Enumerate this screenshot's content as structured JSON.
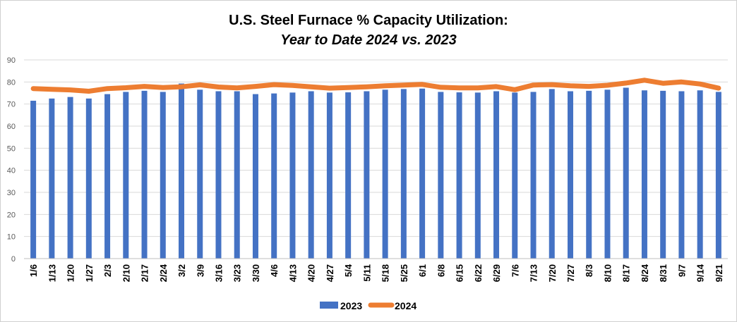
{
  "chart_data": {
    "type": "bar",
    "title": "U.S. Steel Furnace % Capacity Utilization:",
    "subtitle": "Year to Date 2024 vs. 2023",
    "xlabel": "",
    "ylabel": "",
    "ylim": [
      0,
      90
    ],
    "yticks": [
      0,
      10,
      20,
      30,
      40,
      50,
      60,
      70,
      80,
      90
    ],
    "grid": true,
    "legend": "bottom",
    "categories": [
      "1/6",
      "1/13",
      "1/20",
      "1/27",
      "2/3",
      "2/10",
      "2/17",
      "2/24",
      "3/2",
      "3/9",
      "3/16",
      "3/23",
      "3/30",
      "4/6",
      "4/13",
      "4/20",
      "4/27",
      "5/4",
      "5/11",
      "5/18",
      "5/25",
      "6/1",
      "6/8",
      "6/15",
      "6/22",
      "6/29",
      "7/6",
      "7/13",
      "7/20",
      "7/27",
      "8/3",
      "8/10",
      "8/17",
      "8/24",
      "8/31",
      "9/7",
      "9/14",
      "9/21"
    ],
    "series": [
      {
        "name": "2023",
        "type": "bar",
        "color": "#4472c4",
        "values": [
          71.5,
          72.5,
          73.2,
          72.5,
          74.5,
          75.5,
          76.0,
          75.5,
          79.3,
          76.5,
          75.8,
          75.8,
          74.5,
          74.8,
          75.2,
          75.8,
          75.2,
          75.3,
          75.8,
          76.5,
          76.8,
          77.0,
          75.5,
          75.3,
          75.2,
          75.8,
          75.2,
          75.5,
          76.8,
          75.8,
          76.0,
          76.5,
          77.4,
          76.2,
          76.0,
          75.8,
          76.2,
          75.5
        ]
      },
      {
        "name": "2024",
        "type": "line",
        "color": "#ed7d31",
        "values": [
          77.0,
          76.7,
          76.4,
          75.8,
          77.0,
          77.4,
          78.0,
          77.5,
          77.8,
          78.7,
          77.7,
          77.3,
          78.0,
          78.8,
          78.4,
          77.8,
          77.2,
          77.5,
          77.8,
          78.3,
          78.6,
          78.9,
          77.6,
          77.3,
          77.3,
          77.9,
          76.5,
          78.6,
          78.8,
          78.3,
          78.0,
          78.5,
          79.5,
          80.8,
          79.4,
          80.0,
          79.1,
          77.2
        ]
      }
    ]
  }
}
